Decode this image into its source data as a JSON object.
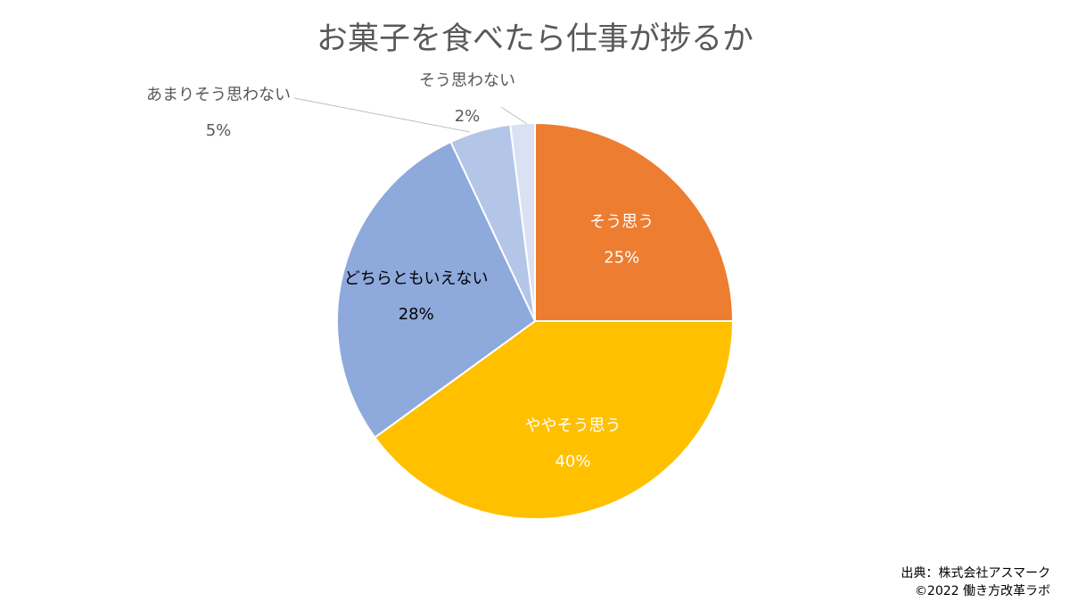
{
  "chart_data": {
    "type": "pie",
    "title": "お菓子を食べたら仕事が捗るか",
    "categories": [
      "そう思う",
      "ややそう思う",
      "どちらともいえない",
      "あまりそう思わない",
      "そう思わない"
    ],
    "values": [
      25,
      40,
      28,
      5,
      2
    ],
    "value_labels": [
      "25%",
      "40%",
      "28%",
      "5%",
      "2%"
    ],
    "colors": [
      "#ED7D31",
      "#FFC000",
      "#8EA9DB",
      "#B4C6E7",
      "#D9E1F2"
    ],
    "label_colors": [
      "#FFFFFF",
      "#FFFFFF",
      "#000000",
      "#595959",
      "#595959"
    ],
    "start": "12 o'clock, clockwise",
    "legend": "none"
  },
  "source": {
    "line1": "出典：株式会社アスマーク",
    "line2": "©2022 働き方改革ラボ"
  }
}
